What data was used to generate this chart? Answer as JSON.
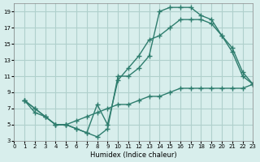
{
  "xlabel": "Humidex (Indice chaleur)",
  "ylabel": "",
  "bg_color": "#d8eeec",
  "grid_color": "#b0d0cc",
  "line_color": "#2e7d6e",
  "xlim": [
    0,
    23
  ],
  "ylim": [
    3,
    20
  ],
  "xticks": [
    0,
    1,
    2,
    3,
    4,
    5,
    6,
    7,
    8,
    9,
    10,
    11,
    12,
    13,
    14,
    15,
    16,
    17,
    18,
    19,
    20,
    21,
    22,
    23
  ],
  "yticks": [
    3,
    5,
    7,
    9,
    11,
    13,
    15,
    17,
    19
  ],
  "line1_x": [
    1,
    2,
    3,
    4,
    5,
    6,
    7,
    8,
    9,
    10,
    11,
    12,
    13,
    14,
    15,
    16,
    17,
    18,
    19,
    20,
    21,
    22,
    23
  ],
  "line1_y": [
    8,
    7,
    6,
    5,
    5,
    4.5,
    4,
    3.5,
    4.5,
    11,
    11,
    12,
    13.5,
    19,
    19.5,
    19.5,
    19.5,
    18.5,
    18,
    16,
    14.5,
    11.5,
    10
  ],
  "line2_x": [
    1,
    2,
    3,
    4,
    5,
    6,
    7,
    8,
    9,
    10,
    11,
    12,
    13,
    14,
    15,
    16,
    17,
    18,
    19,
    20,
    21,
    22,
    23
  ],
  "line2_y": [
    8,
    7,
    6,
    5,
    5,
    4.5,
    4,
    7.5,
    5,
    10.5,
    12,
    13.5,
    15.5,
    16,
    17,
    18,
    18,
    18,
    17.5,
    16,
    14,
    11,
    10
  ],
  "line3_x": [
    1,
    2,
    3,
    4,
    5,
    6,
    7,
    8,
    9,
    10,
    11,
    12,
    13,
    14,
    15,
    16,
    17,
    18,
    19,
    20,
    21,
    22,
    23
  ],
  "line3_y": [
    8,
    6.5,
    6,
    5,
    5,
    5.5,
    6,
    6.5,
    7,
    7.5,
    7.5,
    8,
    8.5,
    8.5,
    9,
    9.5,
    9.5,
    9.5,
    9.5,
    9.5,
    9.5,
    9.5,
    10
  ],
  "marker": "+"
}
